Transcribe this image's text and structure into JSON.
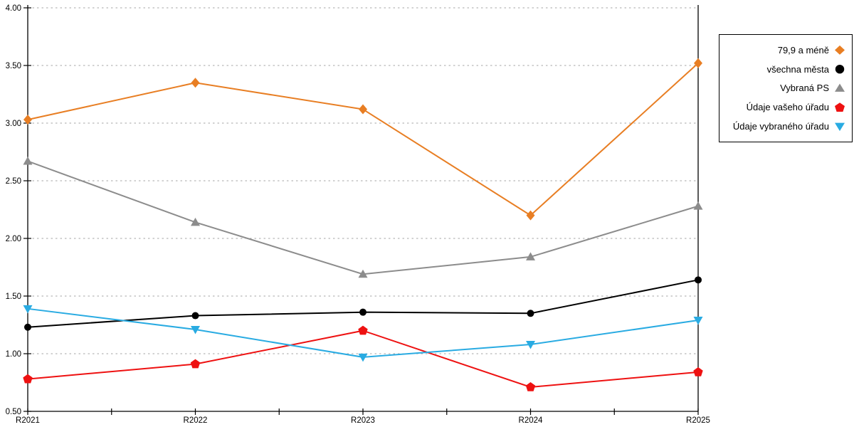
{
  "chart_data": {
    "type": "line",
    "title": "",
    "xlabel": "",
    "ylabel": "",
    "categories": [
      "R2021",
      "R2022",
      "R2023",
      "R2024",
      "R2025"
    ],
    "series": [
      {
        "name": "79,9 a méně",
        "color": "#E87E23",
        "marker": "diamond",
        "values": [
          3.03,
          3.35,
          3.12,
          2.2,
          3.52
        ]
      },
      {
        "name": "všechna města",
        "color": "#000000",
        "marker": "circle",
        "values": [
          1.23,
          1.33,
          1.36,
          1.35,
          1.64
        ]
      },
      {
        "name": "Vybraná PS",
        "color": "#8C8C8C",
        "marker": "triangle-up",
        "values": [
          2.67,
          2.14,
          1.69,
          1.84,
          2.28
        ]
      },
      {
        "name": "Údaje vašeho úřadu",
        "color": "#EE1111",
        "marker": "pentagon",
        "values": [
          0.78,
          0.91,
          1.2,
          0.71,
          0.84
        ]
      },
      {
        "name": "Údaje vybraného úřadu",
        "color": "#29ABE2",
        "marker": "triangle-down",
        "values": [
          1.39,
          1.21,
          0.97,
          1.08,
          1.29
        ]
      }
    ],
    "ylim": [
      0.5,
      4.0
    ],
    "ytick_step": 0.5,
    "ytick_labels": [
      "4.00",
      "3.50",
      "3.00",
      "2.50",
      "2.00",
      "1.50",
      "1.00",
      "0.50"
    ],
    "grid": "horizontal-dotted",
    "legend_position": "right"
  },
  "colors": {
    "grid": "#A6A6A6",
    "axis": "#000000",
    "background": "#FFFFFF"
  }
}
